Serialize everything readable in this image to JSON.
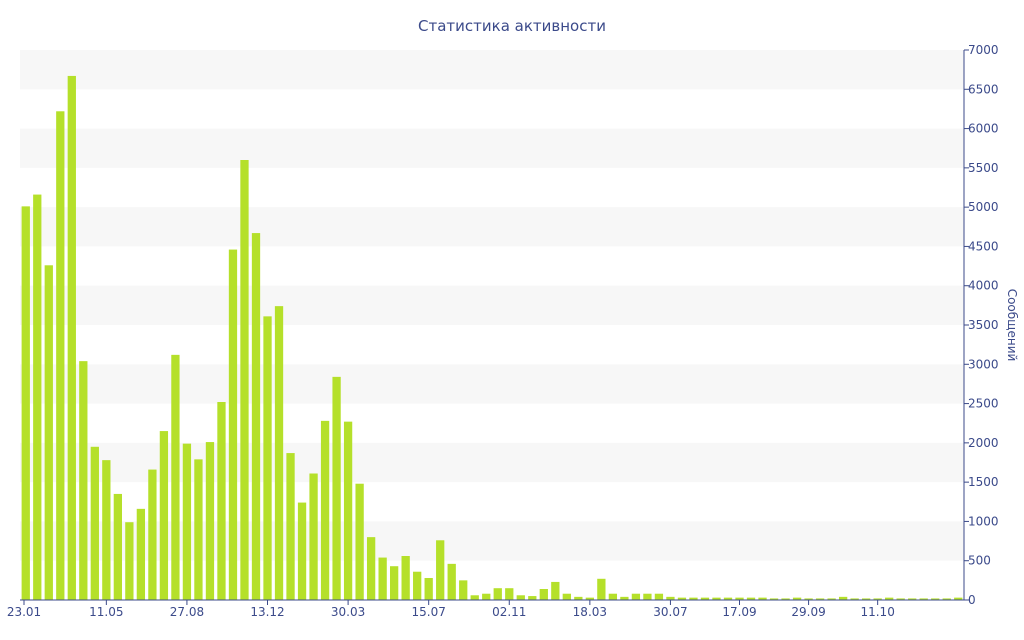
{
  "chart_data": {
    "type": "bar",
    "title": "Статистика активности",
    "xlabel": "",
    "ylabel": "Сообщений",
    "ylim": [
      0,
      7000
    ],
    "y_ticks": [
      0,
      500,
      1000,
      1500,
      2000,
      2500,
      3000,
      3500,
      4000,
      4500,
      5000,
      5500,
      6000,
      6500,
      7000
    ],
    "y_axis_side": "right",
    "grid": "alternating horizontal bands",
    "bar_color": "#b5e02a",
    "band_color": "#f7f7f7",
    "x_tick_labels": [
      {
        "label": "23.01",
        "index": 0
      },
      {
        "label": "11.05",
        "index": 7
      },
      {
        "label": "27.08",
        "index": 14
      },
      {
        "label": "13.12",
        "index": 21
      },
      {
        "label": "30.03",
        "index": 28
      },
      {
        "label": "15.07",
        "index": 35
      },
      {
        "label": "02.11",
        "index": 42
      },
      {
        "label": "18.03",
        "index": 49
      },
      {
        "label": "30.07",
        "index": 56
      },
      {
        "label": "17.09",
        "index": 62
      },
      {
        "label": "29.09",
        "index": 68
      },
      {
        "label": "11.10",
        "index": 74
      }
    ],
    "values": [
      5010,
      5160,
      4260,
      6220,
      6670,
      3040,
      1950,
      1780,
      1350,
      990,
      1160,
      1660,
      2150,
      3120,
      1990,
      1790,
      2010,
      2520,
      4460,
      5600,
      4670,
      3610,
      3740,
      1870,
      1240,
      1610,
      2280,
      2840,
      2270,
      1480,
      800,
      540,
      430,
      560,
      360,
      280,
      760,
      460,
      250,
      60,
      80,
      150,
      150,
      60,
      50,
      140,
      230,
      80,
      40,
      30,
      270,
      80,
      40,
      80,
      80,
      80,
      40,
      30,
      30,
      30,
      30,
      30,
      30,
      30,
      30,
      20,
      20,
      30,
      20,
      20,
      20,
      40,
      20,
      20,
      20,
      30,
      20,
      20,
      20,
      20,
      20,
      30
    ]
  }
}
